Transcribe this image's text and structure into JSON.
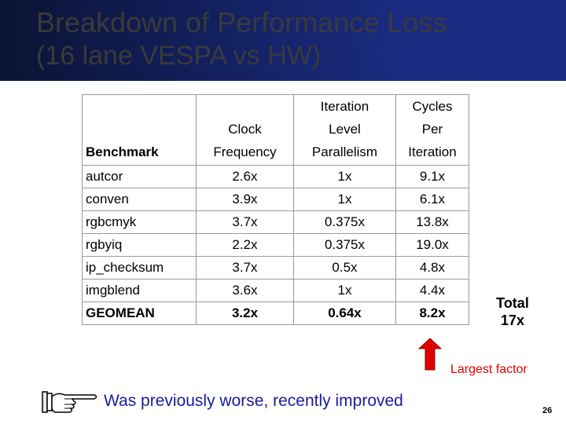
{
  "slide": {
    "title_line1": "Breakdown of Performance Loss",
    "title_line2": "(16 lane VESPA vs HW)",
    "page_number": "26"
  },
  "table": {
    "headers": {
      "benchmark": "Benchmark",
      "clock": [
        "Clock",
        "Frequency"
      ],
      "ilp": [
        "Iteration",
        "Level",
        "Parallelism"
      ],
      "cycles": [
        "Cycles",
        "Per",
        "Iteration"
      ]
    },
    "rows": [
      {
        "name": "autcor",
        "clock": "2.6x",
        "ilp": "1x",
        "cycles": "9.1x"
      },
      {
        "name": "conven",
        "clock": "3.9x",
        "ilp": "1x",
        "cycles": "6.1x"
      },
      {
        "name": "rgbcmyk",
        "clock": "3.7x",
        "ilp": "0.375x",
        "cycles": "13.8x"
      },
      {
        "name": "rgbyiq",
        "clock": "2.2x",
        "ilp": "0.375x",
        "cycles": "19.0x"
      },
      {
        "name": "ip_checksum",
        "clock": "3.7x",
        "ilp": "0.5x",
        "cycles": "4.8x"
      },
      {
        "name": "imgblend",
        "clock": "3.6x",
        "ilp": "1x",
        "cycles": "4.4x"
      },
      {
        "name": "GEOMEAN",
        "clock": "3.2x",
        "ilp": "0.64x",
        "cycles": "8.2x"
      }
    ]
  },
  "total": {
    "line1": "Total",
    "line2": "17x"
  },
  "annotations": {
    "largest_factor": "Largest factor",
    "note": "Was previously worse, recently improved",
    "arrow_color": "#e00000",
    "note_color": "#1a1aa0"
  },
  "icons": {
    "arrow": "up-arrow-icon",
    "hand": "pointing-hand-icon"
  }
}
